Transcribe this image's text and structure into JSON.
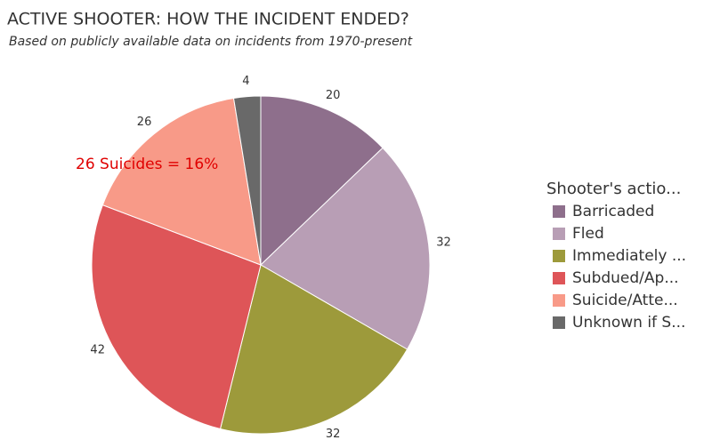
{
  "chart_data": {
    "type": "pie",
    "title": "ACTIVE SHOOTER: HOW THE INCIDENT ENDED?",
    "subtitle": "Based on publicly available data on incidents from 1970-present",
    "legend_title": "Shooter's actio...",
    "categories": [
      "Barricaded",
      "Fled",
      "Immediately ...",
      "Subdued/Ap...",
      "Suicide/Atte...",
      "Unknown if S..."
    ],
    "values": [
      20,
      32,
      32,
      42,
      26,
      4
    ],
    "colors": [
      "#8e6f8c",
      "#b89eb5",
      "#9d9a3b",
      "#de5558",
      "#f89a88",
      "#696969"
    ],
    "annotation": "26 Suicides = 16%",
    "legend_position": "right"
  }
}
